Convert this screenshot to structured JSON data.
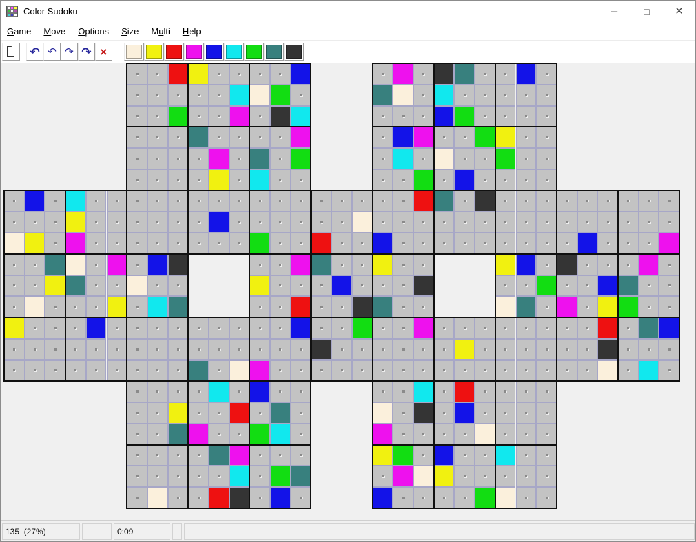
{
  "window": {
    "title": "Color Sudoku",
    "app_icon": {
      "name": "color-grid-icon",
      "colors": [
        "#ffffff",
        "#ff50ff",
        "#ffff40",
        "#40c040",
        "#ffffff",
        "#b050b0",
        "#40d0d0",
        "#4040c0",
        "#ffffff"
      ]
    },
    "minimize_glyph": "─",
    "maximize_glyph": "□",
    "close_glyph": "×"
  },
  "menu": [
    {
      "label": "Game",
      "underline": 0
    },
    {
      "label": "Move",
      "underline": 0
    },
    {
      "label": "Options",
      "underline": 0
    },
    {
      "label": "Size",
      "underline": 0
    },
    {
      "label": "Multi",
      "underline": 1
    },
    {
      "label": "Help",
      "underline": 0
    }
  ],
  "toolbar": {
    "new_button": {
      "name": "new-game",
      "icon": "new-document-page-icon"
    },
    "history_buttons": [
      {
        "name": "undo-all",
        "glyph": "↶",
        "strong": true,
        "color": "#26269b"
      },
      {
        "name": "undo",
        "glyph": "↶",
        "strong": false,
        "color": "#26269b"
      },
      {
        "name": "redo",
        "glyph": "↷",
        "strong": false,
        "color": "#26269b"
      },
      {
        "name": "redo-all",
        "glyph": "↷",
        "strong": true,
        "color": "#26269b"
      },
      {
        "name": "delete",
        "glyph": "×",
        "strong": true,
        "color": "#c41414"
      }
    ],
    "palette": [
      {
        "name": "cream",
        "key": "C"
      },
      {
        "name": "yellow",
        "key": "Y"
      },
      {
        "name": "red",
        "key": "R"
      },
      {
        "name": "magenta",
        "key": "M"
      },
      {
        "name": "blue",
        "key": "B"
      },
      {
        "name": "cyan",
        "key": "A"
      },
      {
        "name": "green",
        "key": "G"
      },
      {
        "name": "teal",
        "key": "T"
      },
      {
        "name": "dark-gray",
        "key": "D"
      }
    ]
  },
  "puzzle": {
    "colors": {
      "C": "#fbf0dc",
      "Y": "#f1f110",
      "R": "#ee1111",
      "M": "#ee11ee",
      "B": "#1313e8",
      "A": "#11e8ee",
      "G": "#12dd12",
      "T": "#38807e",
      "D": "#343434"
    },
    "empty_cell_color": "#c3c3c3",
    "grids": [
      {
        "name": "top-left",
        "col": 6,
        "row": 0
      },
      {
        "name": "top-right",
        "col": 18,
        "row": 0
      },
      {
        "name": "middle-left",
        "col": 0,
        "row": 6
      },
      {
        "name": "middle-center",
        "col": 12,
        "row": 6
      },
      {
        "name": "middle-right",
        "col": 24,
        "row": 6
      },
      {
        "name": "bottom-left",
        "col": 6,
        "row": 12
      },
      {
        "name": "bottom-right",
        "col": 18,
        "row": 12
      }
    ],
    "cells": [
      "........RY....B....M.DT..B.......",
      "...........ACG....TC.A...........",
      "........G..M.DA......BG..........",
      ".........T....M....BM..GY........",
      "..........M.T.G....A.C..G........",
      "..........Y.A.......G.B..........",
      ".B.A................RT.D.........",
      "...Y......B......C...............",
      "CY.M........G..R..B.........B...M",
      "..TC.M.BD.....MT..Y.....YB.D...M.",
      "..YT..C.....Y...B...D.....G..BT..",
      ".C...Y.AT.....R..DT.....CT.M.YG..",
      "Y...B.........B..G..M........R.TB",
      "...............D......Y......D...",
      ".........T.CM................C.A.",
      "..........A.B.......A.R..........",
      "........Y..R.T....C.D.B..........",
      "........TM..GA....M....C.........",
      "..........TM......YG.B..A........",
      "...........A.GT....MCY...........",
      ".......C..RD.B....B....GC........"
    ]
  },
  "statusbar": {
    "progress": "135  (27%)",
    "panel2": "",
    "timer": "0:09",
    "panel4": "",
    "panel5": ""
  }
}
